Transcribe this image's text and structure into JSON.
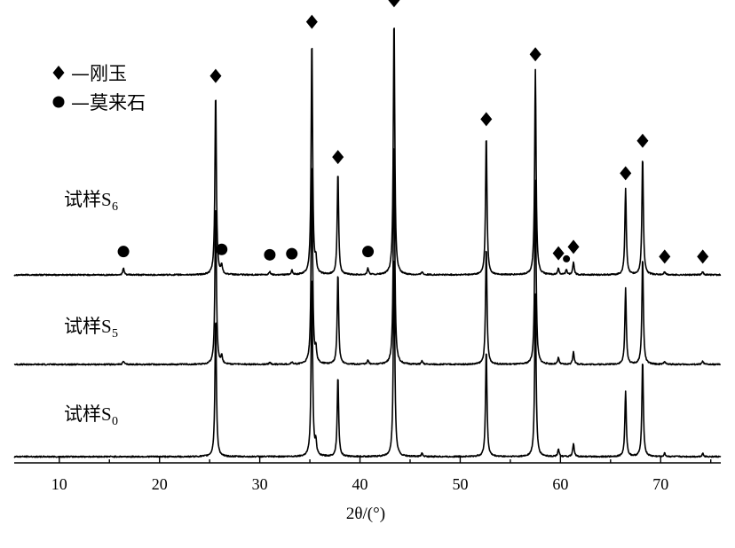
{
  "chart_data": {
    "type": "line",
    "xlabel": "2θ/(°)",
    "xlim": [
      5.5,
      76
    ],
    "x_ticks": [
      10,
      20,
      30,
      40,
      50,
      60,
      70
    ],
    "grid": false,
    "legend": {
      "placement": "top-left",
      "entries": [
        {
          "marker": "diamond",
          "label": "—刚玉"
        },
        {
          "marker": "circle",
          "label": "—莫来石"
        }
      ]
    },
    "series": [
      {
        "label": "试样",
        "subscript": "6",
        "peaks": [
          [
            16.4,
            0.06
          ],
          [
            25.6,
            1.7
          ],
          [
            26.2,
            0.08
          ],
          [
            31.0,
            0.03
          ],
          [
            33.2,
            0.04
          ],
          [
            35.2,
            2.2
          ],
          [
            35.6,
            0.12
          ],
          [
            37.8,
            0.95
          ],
          [
            40.8,
            0.06
          ],
          [
            43.4,
            2.4
          ],
          [
            46.2,
            0.03
          ],
          [
            52.6,
            1.3
          ],
          [
            57.5,
            1.9
          ],
          [
            59.8,
            0.06
          ],
          [
            60.6,
            0.05
          ],
          [
            61.3,
            0.12
          ],
          [
            66.5,
            0.8
          ],
          [
            68.2,
            1.1
          ],
          [
            70.4,
            0.03
          ],
          [
            74.2,
            0.03
          ]
        ]
      },
      {
        "label": "试样",
        "subscript": "5",
        "peaks": [
          [
            16.4,
            0.03
          ],
          [
            25.6,
            1.5
          ],
          [
            26.2,
            0.07
          ],
          [
            31.0,
            0.02
          ],
          [
            33.2,
            0.02
          ],
          [
            35.2,
            1.9
          ],
          [
            35.6,
            0.12
          ],
          [
            37.8,
            0.85
          ],
          [
            40.8,
            0.04
          ],
          [
            43.4,
            2.1
          ],
          [
            46.2,
            0.03
          ],
          [
            52.6,
            1.1
          ],
          [
            57.5,
            1.7
          ],
          [
            59.8,
            0.06
          ],
          [
            61.3,
            0.12
          ],
          [
            66.5,
            0.7
          ],
          [
            68.2,
            1.0
          ],
          [
            70.4,
            0.03
          ],
          [
            74.2,
            0.03
          ]
        ]
      },
      {
        "label": "试样",
        "subscript": "0",
        "peaks": [
          [
            25.6,
            1.3
          ],
          [
            35.2,
            1.7
          ],
          [
            35.6,
            0.12
          ],
          [
            37.8,
            0.75
          ],
          [
            43.4,
            1.9
          ],
          [
            46.2,
            0.03
          ],
          [
            52.6,
            1.0
          ],
          [
            57.5,
            1.5
          ],
          [
            59.8,
            0.07
          ],
          [
            61.3,
            0.12
          ],
          [
            66.5,
            0.6
          ],
          [
            68.2,
            0.9
          ],
          [
            70.4,
            0.03
          ],
          [
            74.2,
            0.03
          ]
        ]
      }
    ],
    "markers": {
      "corundum_diamond_x": [
        25.6,
        35.2,
        37.8,
        43.4,
        52.6,
        57.5,
        59.8,
        61.3,
        66.5,
        68.2,
        70.4,
        74.2
      ],
      "mullite_circle_x": [
        16.4,
        26.2,
        31.0,
        33.2,
        40.8,
        60.6
      ]
    }
  }
}
